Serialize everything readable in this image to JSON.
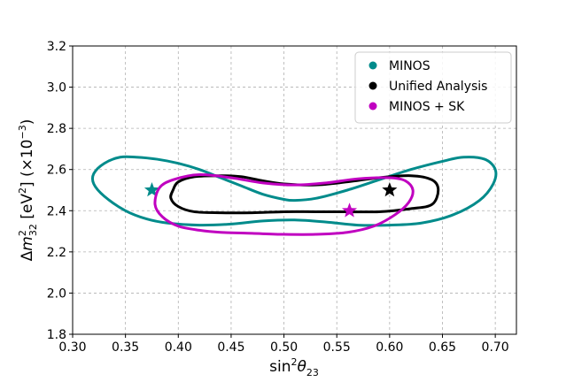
{
  "chart_data": {
    "type": "line",
    "xlabel_parts": {
      "base": "sin",
      "sup": "2",
      "theta": "θ",
      "sub": "23"
    },
    "ylabel_parts": {
      "delta": "Δ",
      "m": "m",
      "msup": "2",
      "msub": "32",
      "unit_open": " [eV",
      "unit_sup": "2",
      "unit_close": "] (×10",
      "exp": "−3",
      "close": ")"
    },
    "xlim": [
      0.3,
      0.72
    ],
    "ylim": [
      1.8,
      3.2
    ],
    "xticks": [
      "0.30",
      "0.35",
      "0.40",
      "0.45",
      "0.50",
      "0.55",
      "0.60",
      "0.65",
      "0.70"
    ],
    "yticks": [
      "1.8",
      "2.0",
      "2.2",
      "2.4",
      "2.6",
      "2.8",
      "3.0",
      "3.2"
    ],
    "grid": true,
    "legend_position": "top-right",
    "series": [
      {
        "name": "MINOS",
        "color": "#008b8b",
        "contour": [
          [
            0.32,
            2.58
          ],
          [
            0.33,
            2.63
          ],
          [
            0.345,
            2.66
          ],
          [
            0.36,
            2.66
          ],
          [
            0.38,
            2.65
          ],
          [
            0.4,
            2.63
          ],
          [
            0.42,
            2.6
          ],
          [
            0.44,
            2.56
          ],
          [
            0.46,
            2.52
          ],
          [
            0.48,
            2.48
          ],
          [
            0.5,
            2.455
          ],
          [
            0.51,
            2.45
          ],
          [
            0.53,
            2.46
          ],
          [
            0.56,
            2.5
          ],
          [
            0.59,
            2.55
          ],
          [
            0.62,
            2.6
          ],
          [
            0.65,
            2.64
          ],
          [
            0.67,
            2.66
          ],
          [
            0.69,
            2.65
          ],
          [
            0.7,
            2.6
          ],
          [
            0.698,
            2.53
          ],
          [
            0.685,
            2.45
          ],
          [
            0.66,
            2.38
          ],
          [
            0.63,
            2.34
          ],
          [
            0.6,
            2.33
          ],
          [
            0.57,
            2.33
          ],
          [
            0.54,
            2.345
          ],
          [
            0.51,
            2.355
          ],
          [
            0.48,
            2.35
          ],
          [
            0.45,
            2.335
          ],
          [
            0.42,
            2.33
          ],
          [
            0.39,
            2.34
          ],
          [
            0.37,
            2.36
          ],
          [
            0.35,
            2.4
          ],
          [
            0.33,
            2.47
          ],
          [
            0.32,
            2.53
          ]
        ],
        "best_fit": [
          0.375,
          2.5
        ]
      },
      {
        "name": "Unified Analysis",
        "color": "#000000",
        "contour": [
          [
            0.395,
            2.5
          ],
          [
            0.4,
            2.54
          ],
          [
            0.415,
            2.565
          ],
          [
            0.44,
            2.57
          ],
          [
            0.46,
            2.565
          ],
          [
            0.48,
            2.545
          ],
          [
            0.5,
            2.53
          ],
          [
            0.53,
            2.525
          ],
          [
            0.56,
            2.54
          ],
          [
            0.59,
            2.56
          ],
          [
            0.62,
            2.57
          ],
          [
            0.64,
            2.55
          ],
          [
            0.646,
            2.5
          ],
          [
            0.64,
            2.43
          ],
          [
            0.62,
            2.41
          ],
          [
            0.59,
            2.395
          ],
          [
            0.56,
            2.395
          ],
          [
            0.53,
            2.395
          ],
          [
            0.5,
            2.395
          ],
          [
            0.47,
            2.39
          ],
          [
            0.44,
            2.39
          ],
          [
            0.415,
            2.395
          ],
          [
            0.4,
            2.42
          ],
          [
            0.393,
            2.46
          ]
        ],
        "best_fit": [
          0.6,
          2.5
        ]
      },
      {
        "name": "MINOS + SK",
        "color": "#c000c0",
        "contour": [
          [
            0.378,
            2.43
          ],
          [
            0.382,
            2.51
          ],
          [
            0.395,
            2.55
          ],
          [
            0.42,
            2.575
          ],
          [
            0.45,
            2.56
          ],
          [
            0.48,
            2.535
          ],
          [
            0.51,
            2.525
          ],
          [
            0.54,
            2.535
          ],
          [
            0.57,
            2.555
          ],
          [
            0.6,
            2.56
          ],
          [
            0.615,
            2.545
          ],
          [
            0.622,
            2.5
          ],
          [
            0.618,
            2.44
          ],
          [
            0.605,
            2.38
          ],
          [
            0.585,
            2.325
          ],
          [
            0.56,
            2.295
          ],
          [
            0.53,
            2.285
          ],
          [
            0.5,
            2.285
          ],
          [
            0.47,
            2.29
          ],
          [
            0.44,
            2.295
          ],
          [
            0.42,
            2.305
          ],
          [
            0.4,
            2.325
          ],
          [
            0.385,
            2.37
          ]
        ],
        "best_fit": [
          0.562,
          2.4
        ]
      }
    ]
  }
}
